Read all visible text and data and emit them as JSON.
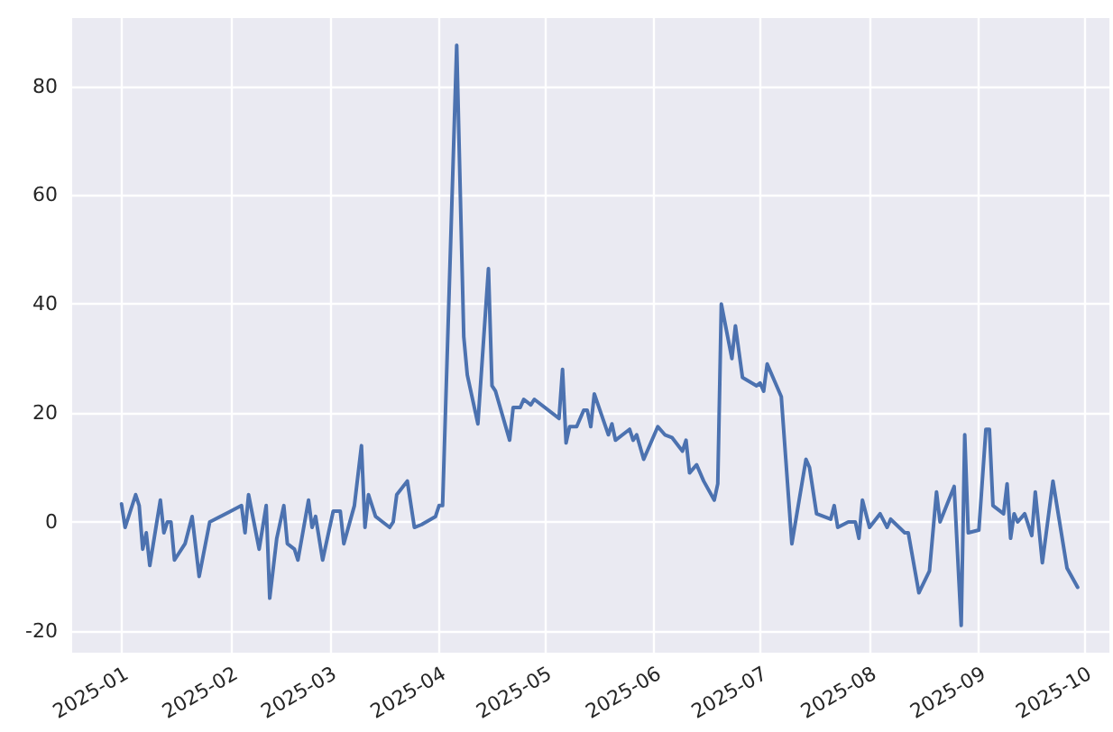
{
  "chart_data": {
    "type": "line",
    "x": [
      "2025-01-01",
      "2025-01-02",
      "2025-01-05",
      "2025-01-06",
      "2025-01-07",
      "2025-01-08",
      "2025-01-09",
      "2025-01-12",
      "2025-01-13",
      "2025-01-14",
      "2025-01-15",
      "2025-01-16",
      "2025-01-19",
      "2025-01-21",
      "2025-01-23",
      "2025-01-26",
      "2025-02-04",
      "2025-02-05",
      "2025-02-06",
      "2025-02-09",
      "2025-02-11",
      "2025-02-12",
      "2025-02-14",
      "2025-02-16",
      "2025-02-17",
      "2025-02-19",
      "2025-02-20",
      "2025-02-23",
      "2025-02-24",
      "2025-02-25",
      "2025-02-27",
      "2025-03-02",
      "2025-03-03",
      "2025-03-04",
      "2025-03-05",
      "2025-03-08",
      "2025-03-10",
      "2025-03-11",
      "2025-03-12",
      "2025-03-14",
      "2025-03-16",
      "2025-03-18",
      "2025-03-19",
      "2025-03-20",
      "2025-03-23",
      "2025-03-25",
      "2025-03-27",
      "2025-03-31",
      "2025-04-01",
      "2025-04-02",
      "2025-04-06",
      "2025-04-08",
      "2025-04-09",
      "2025-04-12",
      "2025-04-15",
      "2025-04-16",
      "2025-04-17",
      "2025-04-21",
      "2025-04-22",
      "2025-04-24",
      "2025-04-25",
      "2025-04-27",
      "2025-04-28",
      "2025-05-05",
      "2025-05-06",
      "2025-05-07",
      "2025-05-08",
      "2025-05-10",
      "2025-05-12",
      "2025-05-13",
      "2025-05-14",
      "2025-05-15",
      "2025-05-19",
      "2025-05-20",
      "2025-05-21",
      "2025-05-25",
      "2025-05-26",
      "2025-05-27",
      "2025-05-29",
      "2025-06-02",
      "2025-06-04",
      "2025-06-06",
      "2025-06-09",
      "2025-06-10",
      "2025-06-11",
      "2025-06-13",
      "2025-06-15",
      "2025-06-18",
      "2025-06-19",
      "2025-06-20",
      "2025-06-23",
      "2025-06-24",
      "2025-06-26",
      "2025-06-30",
      "2025-07-01",
      "2025-07-02",
      "2025-07-03",
      "2025-07-07",
      "2025-07-10",
      "2025-07-14",
      "2025-07-15",
      "2025-07-17",
      "2025-07-21",
      "2025-07-22",
      "2025-07-23",
      "2025-07-26",
      "2025-07-28",
      "2025-07-29",
      "2025-07-30",
      "2025-08-01",
      "2025-08-04",
      "2025-08-06",
      "2025-08-07",
      "2025-08-11",
      "2025-08-12",
      "2025-08-15",
      "2025-08-18",
      "2025-08-20",
      "2025-08-21",
      "2025-08-25",
      "2025-08-27",
      "2025-08-28",
      "2025-08-29",
      "2025-09-01",
      "2025-09-03",
      "2025-09-04",
      "2025-09-05",
      "2025-09-08",
      "2025-09-09",
      "2025-09-10",
      "2025-09-11",
      "2025-09-12",
      "2025-09-14",
      "2025-09-16",
      "2025-09-17",
      "2025-09-19",
      "2025-09-22",
      "2025-09-26",
      "2025-09-29"
    ],
    "series": [
      {
        "color": "#4c72b0",
        "values": [
          3.3,
          -1,
          5,
          3,
          -5,
          -2,
          -8,
          4,
          -2,
          0,
          0,
          -7,
          -4,
          1,
          -10,
          0,
          3,
          -2,
          5,
          -5,
          3,
          -14,
          -3,
          3,
          -4,
          -5,
          -7,
          4,
          -1,
          1,
          -7,
          2,
          2,
          2,
          -4,
          3,
          14,
          -1,
          5,
          1,
          0,
          -1,
          0,
          5,
          7.5,
          -1,
          -0.5,
          1,
          3,
          3,
          87.5,
          34,
          27,
          18,
          46.5,
          25,
          24,
          15,
          21,
          21,
          22.5,
          21.5,
          22.5,
          19,
          28,
          14.5,
          17.5,
          17.5,
          20.5,
          20.5,
          17.5,
          23.5,
          16,
          18,
          15,
          17,
          15,
          16,
          11.5,
          17.5,
          16,
          15.5,
          13,
          15,
          9,
          10.5,
          7.5,
          4,
          7,
          40,
          30,
          36,
          26.5,
          25,
          25.5,
          24,
          29,
          23,
          -4,
          11.5,
          10,
          1.5,
          0.5,
          3,
          -1,
          0,
          0,
          -3,
          4,
          -1,
          1.5,
          -1,
          0.5,
          -2,
          -2,
          -13,
          -9,
          5.5,
          0,
          6.5,
          -19,
          16,
          -2,
          -1.5,
          17,
          17,
          3,
          1.5,
          7,
          -3,
          1.5,
          0,
          1.5,
          -2.5,
          5.5,
          -7.5,
          7.5,
          -8.5,
          -12
        ]
      }
    ],
    "xlim": [
      "2024-12-18",
      "2025-10-08"
    ],
    "xticks": [
      {
        "value": "2025-01-01",
        "label": "2025-01"
      },
      {
        "value": "2025-02-01",
        "label": "2025-02"
      },
      {
        "value": "2025-03-01",
        "label": "2025-03"
      },
      {
        "value": "2025-04-01",
        "label": "2025-04"
      },
      {
        "value": "2025-05-01",
        "label": "2025-05"
      },
      {
        "value": "2025-06-01",
        "label": "2025-06"
      },
      {
        "value": "2025-07-01",
        "label": "2025-07"
      },
      {
        "value": "2025-08-01",
        "label": "2025-08"
      },
      {
        "value": "2025-09-01",
        "label": "2025-09"
      },
      {
        "value": "2025-10-01",
        "label": "2025-10"
      }
    ],
    "ylim": [
      -24,
      92.5
    ],
    "yticks": [
      -20,
      0,
      20,
      40,
      60,
      80
    ],
    "grid": true,
    "marker": "none",
    "line_style": "solid"
  }
}
